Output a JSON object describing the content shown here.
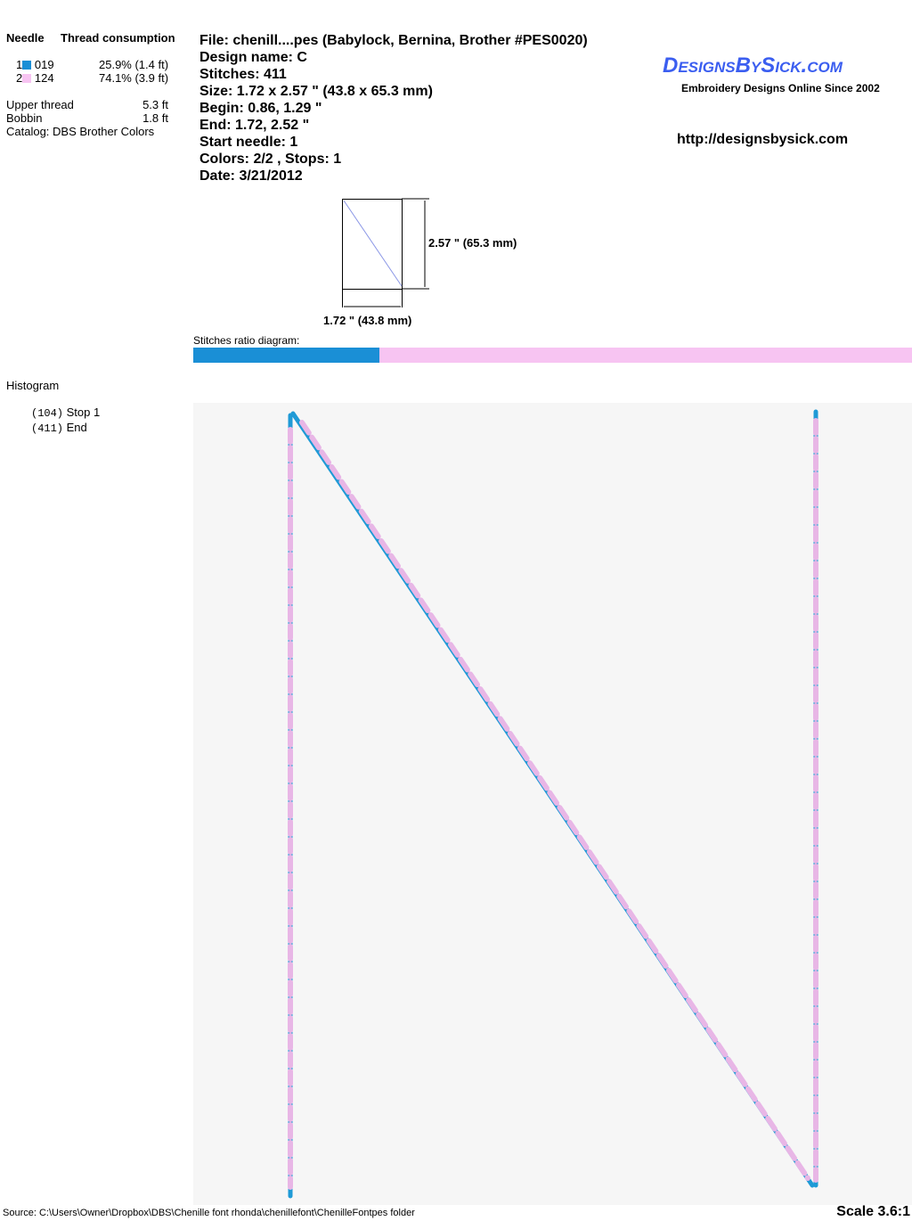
{
  "legend": {
    "needle_header": "Needle",
    "thread_header": "Thread consumption",
    "threads": [
      {
        "needle": "1",
        "code": "019",
        "color": "#1a8fd6",
        "consumption": "25.9% (1.4 ft)"
      },
      {
        "needle": "2",
        "code": "124",
        "color": "#f7c4f2",
        "consumption": "74.1% (3.9 ft)"
      }
    ],
    "upper_label": "Upper thread",
    "upper_value": "5.3 ft",
    "bobbin_label": "Bobbin",
    "bobbin_value": "1.8 ft",
    "catalog": "Catalog: DBS Brother Colors"
  },
  "info": [
    "File: chenill....pes  (Babylock, Bernina, Brother #PES0020)",
    "Design name: C",
    "Stitches: 411",
    "Size: 1.72 x 2.57 \" (43.8 x 65.3 mm)",
    "Begin: 0.86, 1.29 \"",
    "End: 1.72, 2.52 \"",
    "Start needle: 1",
    "Colors: 2/2 , Stops: 1",
    "Date: 3/21/2012"
  ],
  "logo": {
    "text": "DesignsBySick.com",
    "tagline": "Embroidery Designs Online Since 2002"
  },
  "url": "http://designsbysick.com",
  "preview": {
    "height_label": "2.57 \" (65.3 mm)",
    "width_label": "1.72 \" (43.8 mm)"
  },
  "ratio": {
    "label": "Stitches ratio diagram:",
    "values": [
      25.9,
      74.1
    ]
  },
  "histogram": {
    "title": "Histogram",
    "entries": [
      {
        "count": "(104)",
        "label": "Stop 1"
      },
      {
        "count": "(411)",
        "label": "End"
      }
    ]
  },
  "footer": {
    "source": "Source: C:\\Users\\Owner\\Dropbox\\DBS\\Chenille font rhonda\\chenillefont\\ChenilleFontpes folder",
    "scale": "Scale 3.6:1"
  }
}
